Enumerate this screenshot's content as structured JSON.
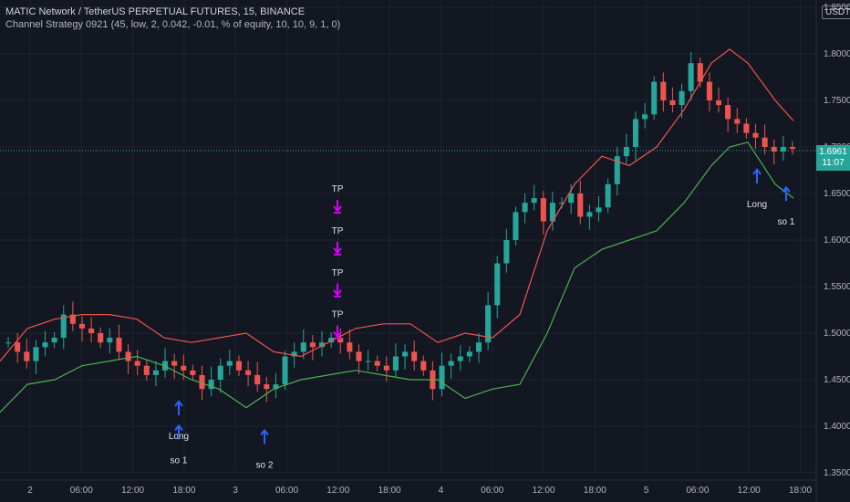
{
  "header": {
    "title": "MATIC Network / TetherUS PERPETUAL FUTURES, 15, BINANCE",
    "strategy": "Channel Strategy 0921 (45, low, 2, 0.042, -0.01, % of equity, 10, 10, 9, 1, 0)"
  },
  "currency": "USDT",
  "price_tag": {
    "price": "1.6961",
    "countdown": "11:07"
  },
  "colors": {
    "background": "#131722",
    "upper_band": "#f0534f",
    "lower_band": "#4caf50",
    "candle_up": "#26a69a",
    "candle_down": "#ef5350",
    "long_marker": "#2962ff",
    "tp_marker": "#d500f9"
  },
  "chart_data": {
    "type": "line",
    "ylim": [
      1.35,
      1.85
    ],
    "y_ticks": [
      "1.8500",
      "1.8000",
      "1.7500",
      "1.7000",
      "1.6500",
      "1.6000",
      "1.5500",
      "1.5000",
      "1.4500",
      "1.4000",
      "1.3500"
    ],
    "x_ticks": [
      "2",
      "06:00",
      "12:00",
      "18:00",
      "3",
      "06:00",
      "12:00",
      "18:00",
      "4",
      "06:00",
      "12:00",
      "18:00",
      "5",
      "06:00",
      "12:00",
      "18:00"
    ],
    "series": [
      {
        "name": "",
        "color": "#f0534f",
        "x": [
          0,
          30,
          60,
          90,
          120,
          150,
          180,
          210,
          240,
          270,
          300,
          330,
          360,
          390,
          420,
          450,
          480,
          510,
          540,
          570,
          600,
          630,
          660,
          690,
          720,
          750,
          780,
          800,
          820,
          850,
          870
        ],
        "values": [
          1.47,
          1.505,
          1.515,
          1.52,
          1.52,
          1.515,
          1.495,
          1.49,
          1.495,
          1.5,
          1.48,
          1.475,
          1.49,
          1.505,
          1.51,
          1.51,
          1.49,
          1.5,
          1.495,
          1.52,
          1.61,
          1.66,
          1.69,
          1.68,
          1.7,
          1.74,
          1.79,
          1.805,
          1.79,
          1.75,
          1.728
        ]
      },
      {
        "name": "",
        "color": "#4caf50",
        "x": [
          0,
          30,
          60,
          90,
          120,
          150,
          180,
          210,
          240,
          270,
          300,
          330,
          360,
          390,
          420,
          450,
          480,
          510,
          540,
          570,
          600,
          630,
          660,
          690,
          720,
          750,
          780,
          800,
          820,
          850,
          870
        ],
        "values": [
          1.415,
          1.445,
          1.45,
          1.465,
          1.47,
          1.475,
          1.465,
          1.45,
          1.44,
          1.42,
          1.44,
          1.45,
          1.455,
          1.46,
          1.455,
          1.45,
          1.45,
          1.43,
          1.44,
          1.445,
          1.5,
          1.57,
          1.59,
          1.6,
          1.61,
          1.64,
          1.68,
          1.7,
          1.705,
          1.66,
          1.645
        ]
      }
    ],
    "close": [
      1.49,
      1.48,
      1.47,
      1.485,
      1.49,
      1.495,
      1.52,
      1.51,
      1.505,
      1.5,
      1.49,
      1.495,
      1.48,
      1.47,
      1.465,
      1.455,
      1.46,
      1.47,
      1.465,
      1.46,
      1.455,
      1.44,
      1.45,
      1.465,
      1.47,
      1.46,
      1.455,
      1.445,
      1.44,
      1.445,
      1.475,
      1.48,
      1.49,
      1.485,
      1.49,
      1.495,
      1.49,
      1.48,
      1.47,
      1.47,
      1.465,
      1.46,
      1.475,
      1.48,
      1.47,
      1.46,
      1.44,
      1.465,
      1.47,
      1.475,
      1.48,
      1.49,
      1.53,
      1.575,
      1.6,
      1.63,
      1.64,
      1.645,
      1.62,
      1.64,
      1.64,
      1.65,
      1.625,
      1.63,
      1.635,
      1.66,
      1.69,
      1.7,
      1.73,
      1.735,
      1.77,
      1.75,
      1.745,
      1.76,
      1.79,
      1.77,
      1.75,
      1.745,
      1.73,
      1.725,
      1.715,
      1.71,
      1.7,
      1.695,
      1.7,
      1.698
    ],
    "annotations": [
      {
        "label": "Long",
        "kind": "long",
        "x": 196,
        "y": 1.408
      },
      {
        "label": "so 1",
        "kind": "long",
        "x": 196,
        "y": 1.382
      },
      {
        "label": "so 2",
        "kind": "long",
        "x": 290,
        "y": 1.377
      },
      {
        "label": "TP",
        "kind": "tp",
        "x": 370,
        "y": 1.652
      },
      {
        "label": "TP",
        "kind": "tp",
        "x": 370,
        "y": 1.607
      },
      {
        "label": "TP",
        "kind": "tp",
        "x": 370,
        "y": 1.562
      },
      {
        "label": "TP",
        "kind": "tp",
        "x": 370,
        "y": 1.517
      },
      {
        "label": "Long",
        "kind": "long",
        "x": 830,
        "y": 1.657
      },
      {
        "label": "so 1",
        "kind": "long",
        "x": 862,
        "y": 1.638
      }
    ]
  }
}
